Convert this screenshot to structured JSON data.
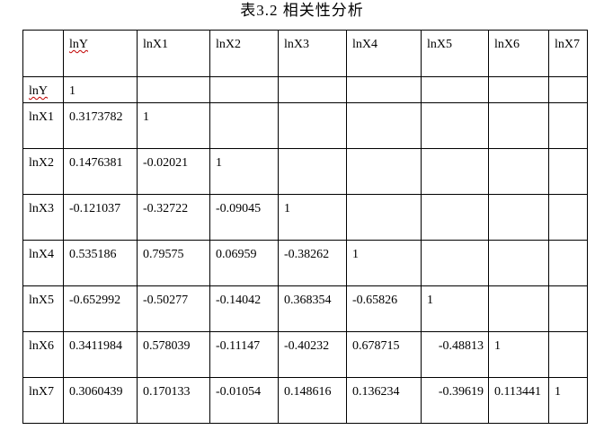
{
  "caption": "表3.2  相关性分析",
  "table": {
    "headers": [
      "",
      "lnY",
      "lnX1",
      "lnX2",
      "lnX3",
      "lnX4",
      "lnX5",
      "lnX6",
      "lnX7"
    ],
    "rows": [
      {
        "label": "lnY",
        "cells": [
          "1",
          "",
          "",
          "",
          "",
          "",
          "",
          ""
        ]
      },
      {
        "label": "lnX1",
        "cells": [
          "0.3173782",
          "1",
          "",
          "",
          "",
          "",
          "",
          ""
        ]
      },
      {
        "label": "lnX2",
        "cells": [
          "0.1476381",
          "-0.02021",
          "1",
          "",
          "",
          "",
          "",
          ""
        ]
      },
      {
        "label": "lnX3",
        "cells": [
          "-0.121037",
          "-0.32722",
          "-0.09045",
          "1",
          "",
          "",
          "",
          ""
        ]
      },
      {
        "label": "lnX4",
        "cells": [
          "0.535186",
          "0.79575",
          "0.06959",
          "-0.38262",
          "1",
          "",
          "",
          ""
        ]
      },
      {
        "label": "lnX5",
        "cells": [
          "-0.652992",
          "-0.50277",
          "-0.14042",
          "0.368354",
          "-0.65826",
          "1",
          "",
          ""
        ]
      },
      {
        "label": "lnX6",
        "cells": [
          "0.3411984",
          "0.578039",
          "-0.11147",
          "-0.40232",
          "0.678715",
          "-0.48813",
          "1",
          ""
        ]
      },
      {
        "label": "lnX7",
        "cells": [
          "0.3060439",
          "0.170133",
          "-0.01054",
          "0.148616",
          "0.136234",
          "-0.39619",
          "0.113441",
          "1"
        ]
      }
    ]
  }
}
